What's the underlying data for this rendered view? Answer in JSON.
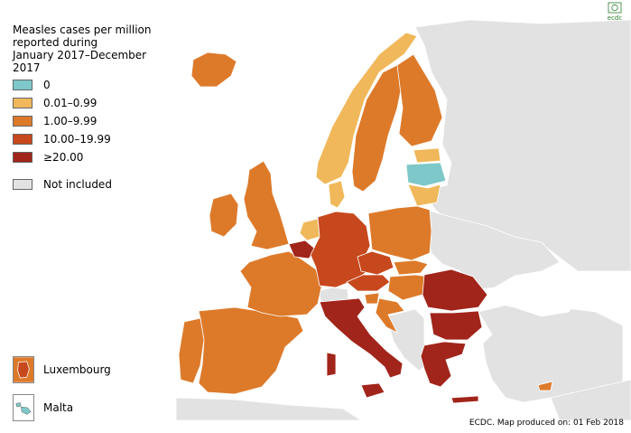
{
  "legend": {
    "title_line1": "Measles cases per million",
    "title_line2": "reported during",
    "title_line3": "January 2017–December 2017",
    "items": [
      {
        "label": "0",
        "color": "#7ec8c9"
      },
      {
        "label": "0.01–0.99",
        "color": "#f0b85a"
      },
      {
        "label": "1.00–9.99",
        "color": "#dd7a2a"
      },
      {
        "label": "10.00–19.99",
        "color": "#c7481d"
      },
      {
        "label": "≥20.00",
        "color": "#a1251a"
      }
    ],
    "not_included_label": "Not included",
    "not_included_color": "#e2e2e2"
  },
  "insets": {
    "luxembourg_label": "Luxembourg",
    "luxembourg_color": "#c7481d",
    "malta_label": "Malta",
    "malta_color": "#7ec8c9"
  },
  "footer": {
    "credit": "ECDC. Map produced on: 01 Feb 2018"
  },
  "logo": {
    "text": "ecdc",
    "icon": "ecdc-logo-icon"
  },
  "map": {
    "sea_color": "#ffffff",
    "border_color": "#ffffff",
    "non_eu_color": "#e2e2e2",
    "countries": [
      {
        "name": "iceland",
        "level": "1.00–9.99"
      },
      {
        "name": "ireland",
        "level": "1.00–9.99"
      },
      {
        "name": "united-kingdom",
        "level": "1.00–9.99"
      },
      {
        "name": "portugal",
        "level": "1.00–9.99"
      },
      {
        "name": "spain",
        "level": "1.00–9.99"
      },
      {
        "name": "france",
        "level": "1.00–9.99"
      },
      {
        "name": "belgium",
        "level": "≥20.00"
      },
      {
        "name": "netherlands",
        "level": "0.01–0.99"
      },
      {
        "name": "luxembourg",
        "level": "10.00–19.99"
      },
      {
        "name": "germany",
        "level": "10.00–19.99"
      },
      {
        "name": "denmark",
        "level": "0.01–0.99"
      },
      {
        "name": "norway",
        "level": "0.01–0.99"
      },
      {
        "name": "sweden",
        "level": "1.00–9.99"
      },
      {
        "name": "finland",
        "level": "1.00–9.99"
      },
      {
        "name": "estonia",
        "level": "0.01–0.99"
      },
      {
        "name": "latvia",
        "level": "0"
      },
      {
        "name": "lithuania",
        "level": "0.01–0.99"
      },
      {
        "name": "poland",
        "level": "1.00–9.99"
      },
      {
        "name": "czechia",
        "level": "10.00–19.99"
      },
      {
        "name": "slovakia",
        "level": "1.00–9.99"
      },
      {
        "name": "austria",
        "level": "10.00–19.99"
      },
      {
        "name": "hungary",
        "level": "1.00–9.99"
      },
      {
        "name": "slovenia",
        "level": "1.00–9.99"
      },
      {
        "name": "croatia",
        "level": "1.00–9.99"
      },
      {
        "name": "italy",
        "level": "≥20.00"
      },
      {
        "name": "romania",
        "level": "≥20.00"
      },
      {
        "name": "bulgaria",
        "level": "≥20.00"
      },
      {
        "name": "greece",
        "level": "≥20.00"
      },
      {
        "name": "cyprus",
        "level": "1.00–9.99"
      },
      {
        "name": "malta",
        "level": "0"
      }
    ]
  }
}
